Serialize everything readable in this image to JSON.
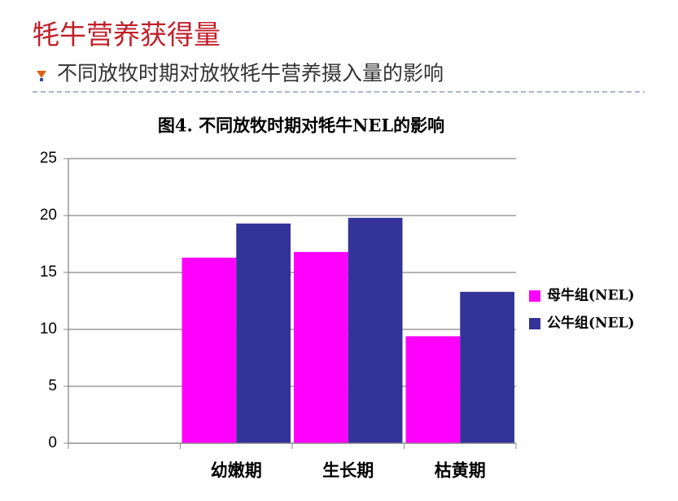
{
  "slide": {
    "title": "牦牛营养获得量",
    "subtitle": "不同放牧时期对放牧牦牛营养摄入量的影响"
  },
  "chart_data": {
    "type": "bar",
    "title": "图4. 不同放牧时期对牦牛NEL的影响",
    "categories": [
      null,
      "幼嫩期",
      "生长期",
      "枯黄期"
    ],
    "series": [
      {
        "name": "母牛组(NEL)",
        "color": "#ff00ff",
        "values": [
          null,
          16.3,
          16.8,
          9.4
        ]
      },
      {
        "name": "公牛组(NEL)",
        "color": "#333399",
        "values": [
          null,
          19.3,
          19.8,
          13.3
        ]
      }
    ],
    "ylim": [
      0,
      25
    ],
    "yticks": [
      0,
      5,
      10,
      15,
      20,
      25
    ],
    "grid": true,
    "legend": "right"
  }
}
